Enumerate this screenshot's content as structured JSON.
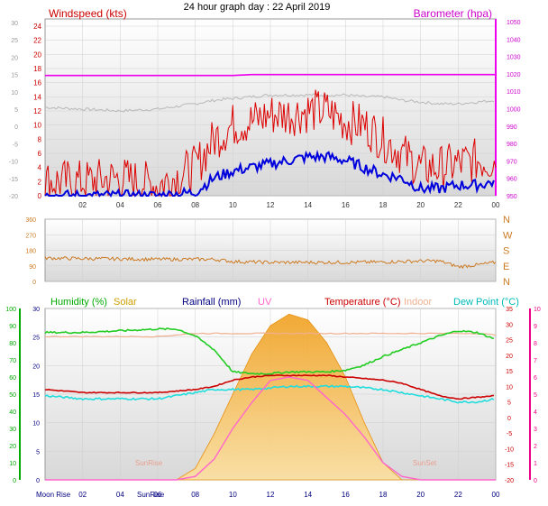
{
  "page": {
    "title": "24 hour graph day : 22 April 2019"
  },
  "colors": {
    "background": "#ffffff",
    "panel_top": "#ffffff",
    "panel_bottom": "#d8d8d8",
    "grid": "#cfcfcf",
    "windspeed": "#dd0000",
    "wind_avg": "#0000dd",
    "barometer": "#ee00ee",
    "baro_shadow": "#b8b8b8",
    "direction": "#cc7a22",
    "humidity": "#22cc22",
    "solar": "#f0a020",
    "rainfall": "#000080",
    "uv": "#ff66cc",
    "temperature": "#cc0000",
    "indoor": "#f0b090",
    "dewpoint": "#22dddd",
    "hum_axis": "#00aa00",
    "uv_axis": "#ee0088"
  },
  "x_ticks": [
    "02",
    "04",
    "06",
    "08",
    "10",
    "12",
    "14",
    "16",
    "18",
    "20",
    "22",
    "00"
  ],
  "chart_data": [
    {
      "type": "line",
      "title": "24 hour graph day : 22 April 2019",
      "left_axis_label": "Windspeed (kts)",
      "right_axis_label": "Barometer (hpa)",
      "left_outer_ticks": [
        "30",
        "25",
        "20",
        "15",
        "10",
        "5",
        "0",
        "-5",
        "-10",
        "-15",
        "-20"
      ],
      "left_ticks": [
        "24",
        "22",
        "20",
        "18",
        "16",
        "14",
        "12",
        "10",
        "8",
        "6",
        "4",
        "2",
        "0"
      ],
      "right_ticks": [
        "1050",
        "1040",
        "1030",
        "1020",
        "1010",
        "1000",
        "990",
        "980",
        "970",
        "960",
        "950"
      ],
      "ylim": [
        0,
        25
      ],
      "ylim_right": [
        950,
        1050
      ],
      "x_hours": [
        0,
        2,
        4,
        6,
        8,
        9,
        10,
        11,
        12,
        13,
        14,
        15,
        16,
        17,
        18,
        19,
        20,
        21,
        22,
        23,
        24
      ],
      "series": [
        {
          "name": "Windspeed (kts)",
          "values": [
            2,
            2,
            2.5,
            1.5,
            4,
            8,
            10,
            10.5,
            11.5,
            11.5,
            12,
            12,
            10.5,
            10,
            8,
            6,
            4,
            4,
            4.5,
            5,
            5
          ]
        },
        {
          "name": "",
          "values": [
            0,
            0,
            0,
            0,
            0.5,
            2.5,
            3.5,
            4,
            4.5,
            5,
            5.5,
            5.5,
            5,
            4,
            3,
            2.5,
            1,
            1,
            1.5,
            1.5,
            2
          ]
        },
        {
          "name": "Barometer (hpa)",
          "values": [
            1018,
            1018,
            1018,
            1018,
            1018,
            1018,
            1018,
            1018.5,
            1018.5,
            1018.5,
            1018.5,
            1018.5,
            1018.5,
            1018.5,
            1018.5,
            1018.5,
            1018.5,
            1018.5,
            1018.5,
            1018.5,
            1018.5
          ]
        },
        {
          "name": "",
          "values": [
            1000,
            999,
            998,
            999,
            1002,
            1004,
            1005,
            1006,
            1007,
            1007,
            1007,
            1007,
            1007,
            1006,
            1006,
            1004,
            1003,
            1002,
            1002,
            1003,
            1004
          ]
        }
      ]
    },
    {
      "type": "line",
      "ylabel_ticks": [
        "360",
        "270",
        "180",
        "90",
        "0"
      ],
      "right_labels": [
        "N",
        "W",
        "S",
        "E",
        "N"
      ],
      "ylim": [
        0,
        360
      ],
      "x_hours": [
        0,
        2,
        4,
        6,
        8,
        9,
        10,
        12,
        14,
        16,
        18,
        19,
        20,
        21,
        22,
        23,
        24
      ],
      "series": [
        {
          "name": "",
          "values": [
            135,
            132,
            130,
            128,
            128,
            128,
            115,
            110,
            110,
            110,
            112,
            115,
            118,
            118,
            85,
            95,
            110
          ]
        }
      ]
    },
    {
      "type": "line",
      "legend": [
        "Humidity (%)",
        "Solar",
        "Rainfall (mm)",
        "UV",
        "Temperature (°C)",
        "Indoor",
        "Dew Point (°C)"
      ],
      "hum_ticks": [
        "100",
        "90",
        "80",
        "70",
        "60",
        "50",
        "40",
        "30",
        "20",
        "10",
        "0"
      ],
      "rain_ticks": [
        "30",
        "25",
        "20",
        "15",
        "10",
        "5",
        "0"
      ],
      "temp_ticks": [
        "35",
        "30",
        "25",
        "20",
        "15",
        "10",
        "5",
        "0",
        "-5",
        "-10",
        "-15",
        "-20"
      ],
      "uv_ticks": [
        "10",
        "9",
        "8",
        "7",
        "6",
        "5",
        "4",
        "3",
        "2",
        "1",
        "0"
      ],
      "ylim_hum": [
        0,
        100
      ],
      "ylim_temp": [
        -20,
        35
      ],
      "markers": {
        "moonrise": "Moon Rise",
        "sunrise": "SunRise",
        "sunset": "SunSet"
      },
      "x_hours": [
        0,
        2,
        4,
        6,
        7,
        8,
        9,
        10,
        11,
        12,
        13,
        14,
        15,
        16,
        17,
        18,
        19,
        20,
        21,
        22,
        23,
        24
      ],
      "series": [
        {
          "name": "Humidity (%)",
          "values": [
            86,
            86,
            87,
            88,
            88,
            84,
            76,
            63,
            62,
            62,
            63,
            63,
            63,
            64,
            67,
            72,
            76,
            80,
            84,
            87,
            86,
            82
          ]
        },
        {
          "name": "Temperature (°C)",
          "values": [
            9,
            8,
            8,
            8,
            8.5,
            9,
            10,
            12,
            13,
            13.5,
            13.5,
            13.5,
            13.5,
            13,
            12.5,
            12,
            11,
            9,
            7,
            6,
            6.5,
            7
          ]
        },
        {
          "name": "Indoor",
          "values": [
            26,
            26,
            26,
            26,
            26.5,
            27,
            27,
            27,
            27,
            27,
            27,
            27,
            27,
            27,
            27,
            27,
            27,
            27,
            27,
            27,
            27,
            26.5
          ]
        },
        {
          "name": "Dew Point (°C)",
          "values": [
            7,
            6,
            6,
            6,
            7,
            8,
            9,
            9,
            9,
            9.5,
            10,
            10,
            10,
            10,
            9.5,
            9,
            8,
            7,
            6,
            5,
            5,
            6
          ]
        },
        {
          "name": "Solar",
          "values": [
            0,
            0,
            0,
            0,
            0,
            2,
            8,
            15,
            22,
            27,
            29,
            28,
            24,
            18,
            10,
            3,
            0,
            0,
            0,
            0,
            0,
            0
          ]
        },
        {
          "name": "UV",
          "values": [
            0,
            0,
            0,
            0,
            0,
            0.2,
            1.2,
            3.0,
            4.5,
            5.8,
            6.0,
            5.8,
            4.8,
            3.8,
            2.5,
            1.0,
            0.2,
            0,
            0,
            0,
            0,
            0
          ]
        }
      ]
    }
  ]
}
